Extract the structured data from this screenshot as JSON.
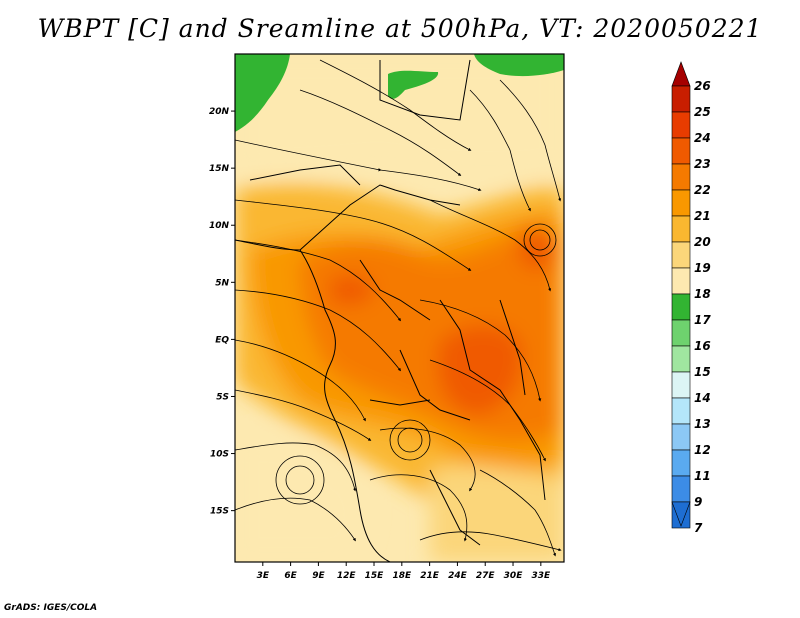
{
  "title": "WBPT [C] and Sreamline at 500hPa, VT: 2020050221",
  "credit": "GrADS: IGES/COLA",
  "map": {
    "lat_labels": [
      "20N",
      "15N",
      "10N",
      "5N",
      "EQ",
      "5S",
      "10S",
      "15S"
    ],
    "lat_values": [
      20,
      15,
      10,
      5,
      0,
      -5,
      -10,
      -15
    ],
    "lon_labels": [
      "3E",
      "6E",
      "9E",
      "12E",
      "15E",
      "18E",
      "21E",
      "24E",
      "27E",
      "30E",
      "33E"
    ],
    "lon_values": [
      3,
      6,
      9,
      12,
      15,
      18,
      21,
      24,
      27,
      30,
      33
    ],
    "lat_range": [
      -19.5,
      25
    ],
    "lon_range": [
      0,
      35.5
    ]
  },
  "colorbar": {
    "labels": [
      "26",
      "25",
      "24",
      "23",
      "22",
      "21",
      "20",
      "19",
      "18",
      "17",
      "16",
      "15",
      "14",
      "13",
      "12",
      "11",
      "9",
      "7"
    ],
    "colors": [
      "#a50000",
      "#c81e00",
      "#e83c00",
      "#f05a00",
      "#f57a00",
      "#f99800",
      "#fab730",
      "#fbd67a",
      "#fde9b0",
      "#32b432",
      "#6ed26e",
      "#a0e6a0",
      "#dcf5f5",
      "#b4e6fa",
      "#8cc8f5",
      "#5aaaf0",
      "#3c8ce6",
      "#1e6ed2"
    ],
    "top_color": "#a50000",
    "bottom_color": "#1e6ed2"
  }
}
